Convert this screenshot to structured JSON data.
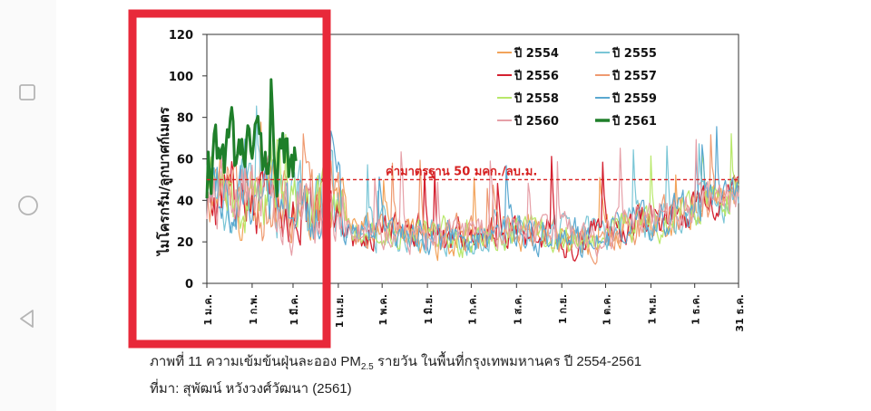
{
  "navigation": {
    "recents_icon": "square-icon",
    "home_icon": "circle-icon",
    "back_icon": "triangle-left-icon"
  },
  "caption": {
    "line1_prefix": "ภาพที่ 11 ความเข้มข้นฝุ่นละออง PM",
    "line1_sub": "2.5",
    "line1_suffix": " รายวัน ในพื้นที่กรุงเทพมหานคร ปี 2554-2561",
    "line2": "ที่มา: สุพัฒน์ หวังวงศ์วัฒนา (2561)"
  },
  "chart_data": {
    "type": "line",
    "ylabel": "ไมโครกรัม/ลูกบาศก์เมตร",
    "ylim": [
      0,
      120
    ],
    "yticks": [
      0,
      20,
      40,
      60,
      80,
      100,
      120
    ],
    "xlabels": [
      "1 ม.ค.",
      "1 ก.พ.",
      "1 มี.ค.",
      "1 เม.ย.",
      "1 พ.ค.",
      "1 มิ.ย.",
      "1 ก.ค.",
      "1 ส.ค.",
      "1 ก.ย.",
      "1 ต.ค.",
      "1 พ.ย.",
      "1 ธ.ค.",
      "31 ธ.ค."
    ],
    "x_unit_day_positions": [
      1,
      32,
      60,
      91,
      121,
      152,
      182,
      213,
      244,
      274,
      305,
      335,
      365
    ],
    "standard": {
      "value": 50,
      "label": "ค่ามาตรฐาน 50 มคก./ลบ.ม.",
      "color": "#d62020"
    },
    "grid": false,
    "legend_position": "top-right",
    "highlight": {
      "color": "#e8293a",
      "from_day": 1,
      "to_day": 90
    },
    "series": [
      {
        "name": "ปี 2554",
        "color": "#f2a35a",
        "width": 1.2,
        "days": 365
      },
      {
        "name": "ปี 2555",
        "color": "#7ac6d6",
        "width": 1.2,
        "days": 365
      },
      {
        "name": "ปี 2556",
        "color": "#d42030",
        "width": 1.3,
        "days": 365
      },
      {
        "name": "ปี 2557",
        "color": "#ef9a70",
        "width": 1.2,
        "days": 365
      },
      {
        "name": "ปี 2558",
        "color": "#b8e86a",
        "width": 1.2,
        "days": 365
      },
      {
        "name": "ปี 2559",
        "color": "#5aa8d0",
        "width": 1.2,
        "days": 365
      },
      {
        "name": "ปี 2560",
        "color": "#e6a0a8",
        "width": 1.2,
        "days": 365
      },
      {
        "name": "ปี 2561",
        "color": "#1f7f2a",
        "width": 3,
        "days": 62
      }
    ]
  }
}
